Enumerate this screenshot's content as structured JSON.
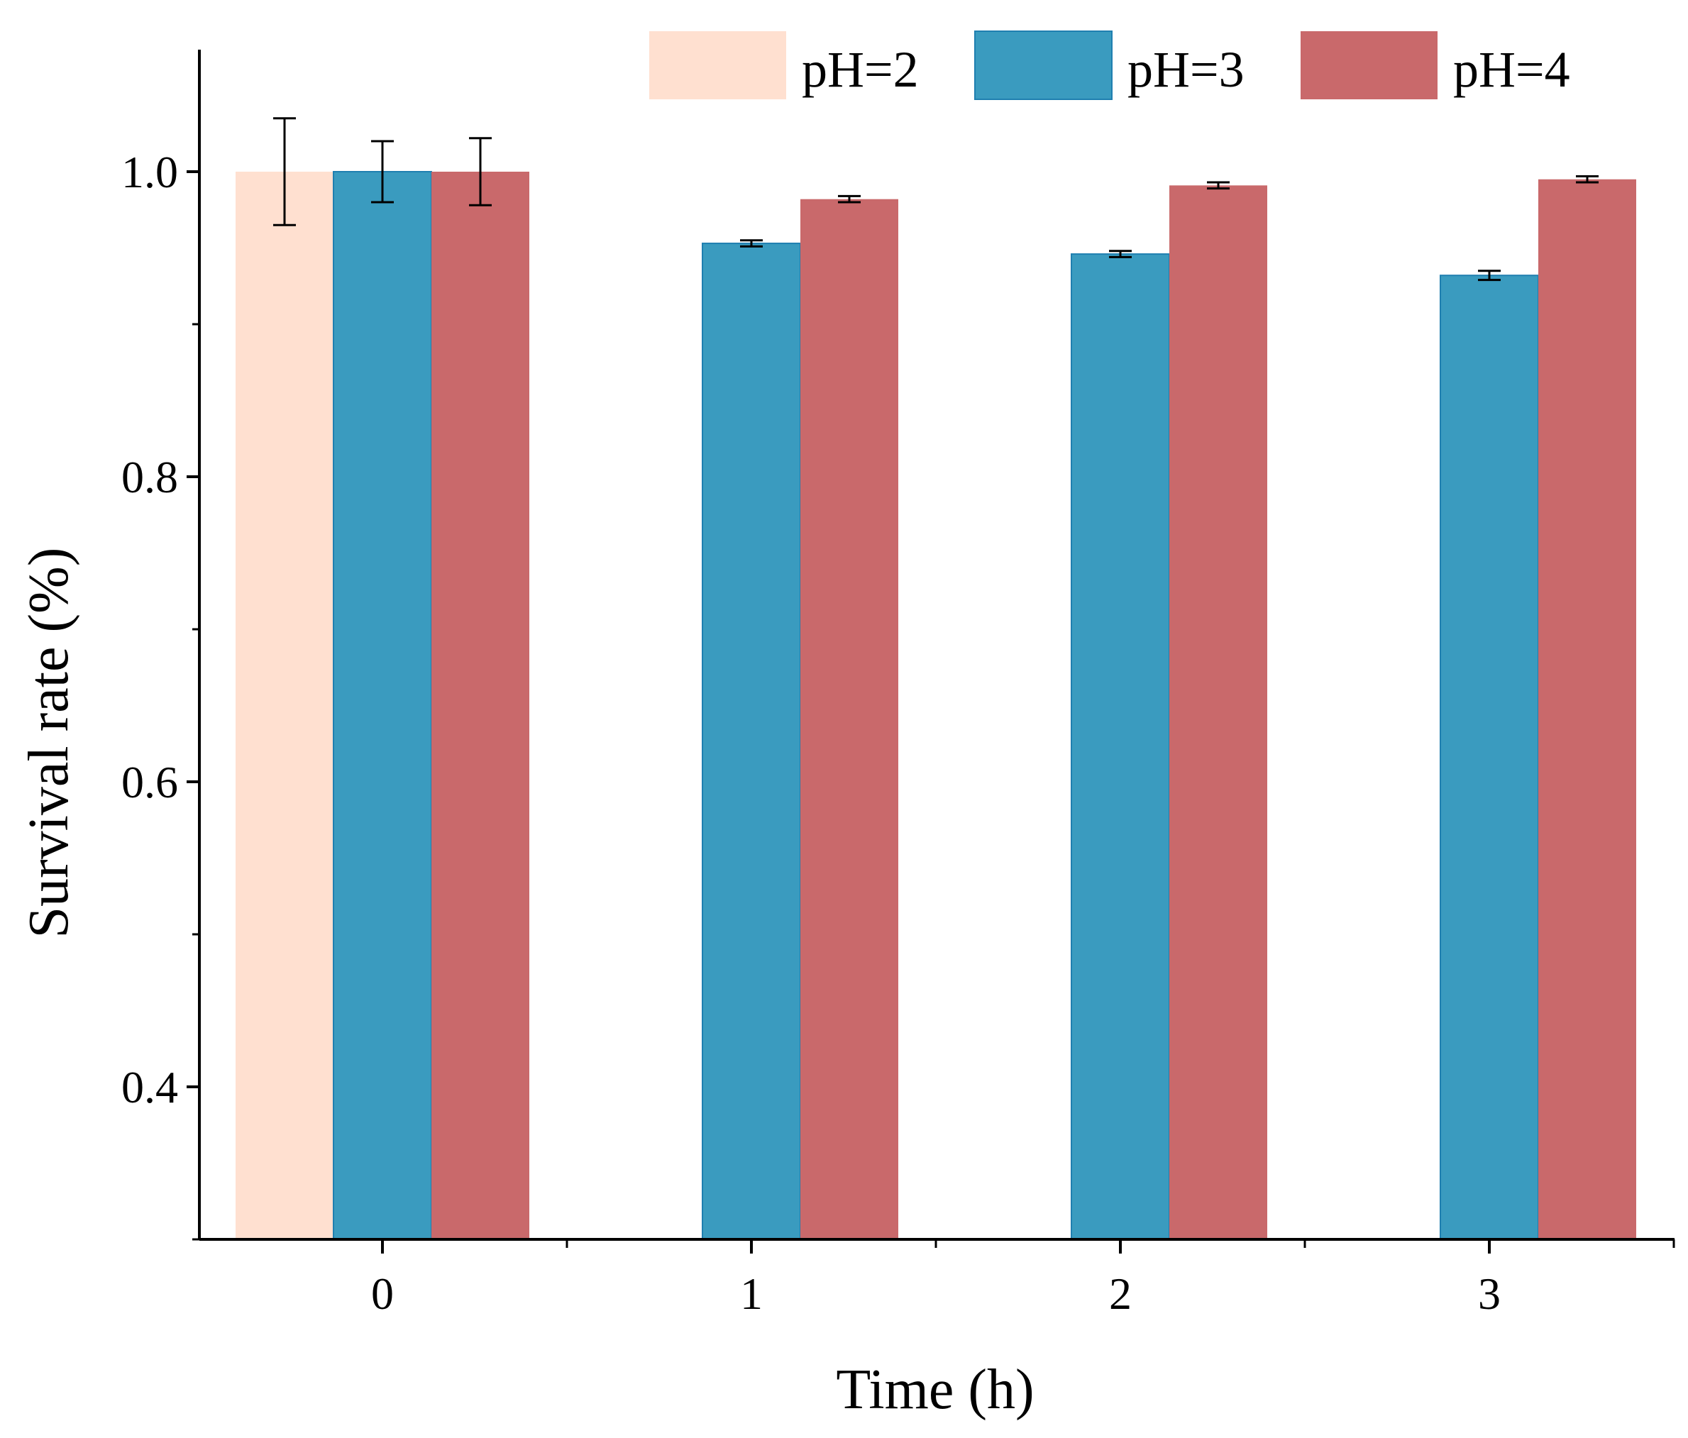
{
  "chart_data": {
    "type": "bar",
    "title": "",
    "xlabel": "Time (h)",
    "ylabel": "Survival rate (%)",
    "categories": [
      "0",
      "1",
      "2",
      "3"
    ],
    "ylim": [
      0.3,
      1.08
    ],
    "yticks": [
      0.4,
      0.6,
      0.8,
      1.0
    ],
    "ytick_labels": [
      "0.4",
      "0.6",
      "0.8",
      "1.0"
    ],
    "grid": false,
    "legend_position": "top",
    "series": [
      {
        "name": "pH=2",
        "color": "#ffe0d0",
        "values": [
          1.0,
          null,
          null,
          null
        ],
        "errors": [
          0.035,
          null,
          null,
          null
        ]
      },
      {
        "name": "pH=3",
        "color": "#3a9bbf",
        "values": [
          1.0,
          0.953,
          0.946,
          0.932
        ],
        "errors": [
          0.02,
          0.002,
          0.002,
          0.003
        ]
      },
      {
        "name": "pH=4",
        "color": "#c9696b",
        "values": [
          1.0,
          0.982,
          0.991,
          0.995
        ],
        "errors": [
          0.022,
          0.002,
          0.002,
          0.002
        ]
      }
    ]
  }
}
